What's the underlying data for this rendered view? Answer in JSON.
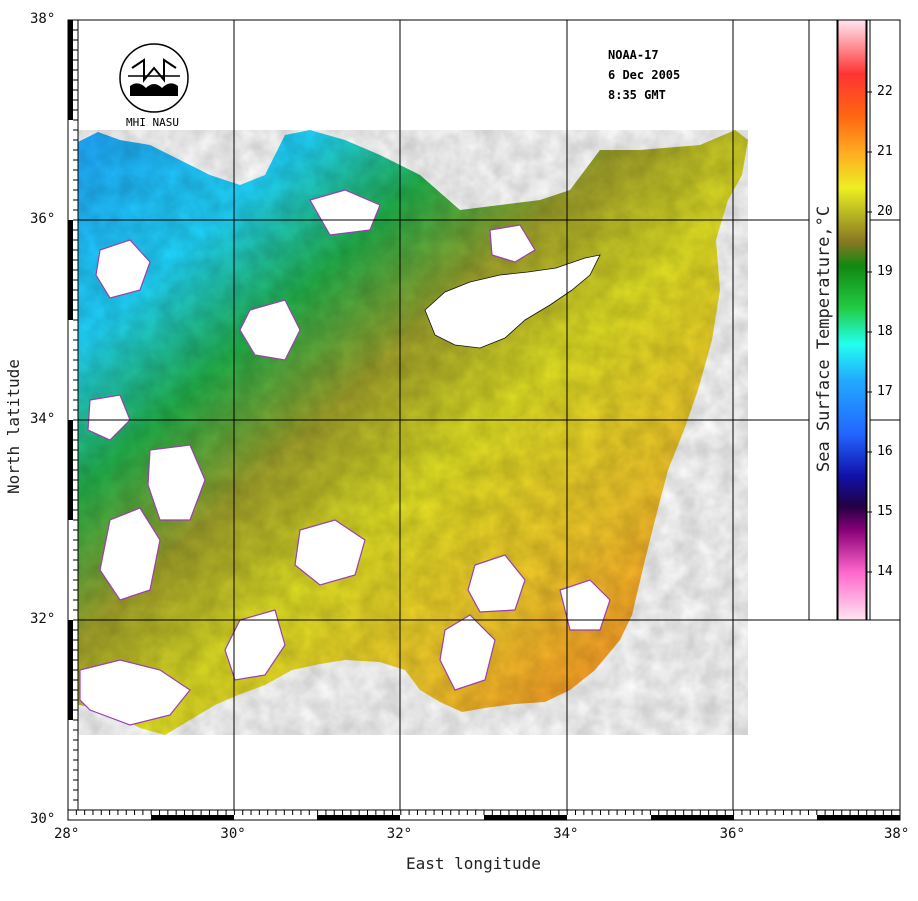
{
  "info": {
    "satellite": "NOAA-17",
    "date": "6 Dec 2005",
    "time": "8:35 GMT",
    "logo_text": "MHI NASU"
  },
  "axes": {
    "xlabel": "East longitude",
    "ylabel": "North latitude",
    "lon_ticks": [
      "28°",
      "30°",
      "32°",
      "34°",
      "36°",
      "38°"
    ],
    "lat_ticks": [
      "38°",
      "36°",
      "34°",
      "32°",
      "30°"
    ],
    "lon_range": [
      28,
      38
    ],
    "lat_range": [
      30,
      38
    ]
  },
  "colorbar": {
    "title": "Sea Surface Temperature,°C",
    "range": [
      13.2,
      23.2
    ],
    "labels": [
      "22",
      "21",
      "20",
      "19",
      "18",
      "17",
      "16",
      "15",
      "14"
    ],
    "stops": [
      {
        "t": 13.2,
        "color": "#ffe6f2"
      },
      {
        "t": 14.0,
        "color": "#ff66cc"
      },
      {
        "t": 14.7,
        "color": "#880077"
      },
      {
        "t": 15.1,
        "color": "#220044"
      },
      {
        "t": 15.6,
        "color": "#1111aa"
      },
      {
        "t": 16.3,
        "color": "#2266ff"
      },
      {
        "t": 17.2,
        "color": "#22aaff"
      },
      {
        "t": 17.8,
        "color": "#22ffee"
      },
      {
        "t": 18.4,
        "color": "#22cc44"
      },
      {
        "t": 19.1,
        "color": "#118811"
      },
      {
        "t": 19.5,
        "color": "#887722"
      },
      {
        "t": 20.0,
        "color": "#bbbb22"
      },
      {
        "t": 20.4,
        "color": "#eeee22"
      },
      {
        "t": 21.0,
        "color": "#ffaa22"
      },
      {
        "t": 21.6,
        "color": "#ff6611"
      },
      {
        "t": 22.3,
        "color": "#ff3333"
      },
      {
        "t": 23.2,
        "color": "#ffe6f2"
      }
    ]
  }
}
